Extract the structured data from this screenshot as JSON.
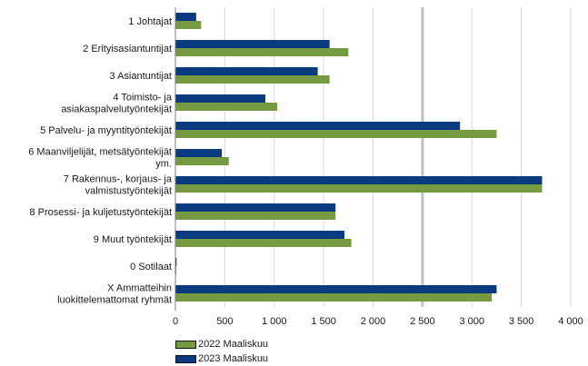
{
  "chart_data": {
    "type": "bar",
    "orientation": "horizontal",
    "categories": [
      "1 Johtajat",
      "2 Erityisasiantuntijat",
      "3 Asiantuntijat",
      "4 Toimisto- ja asiakaspalvelutyöntekijät",
      "5 Palvelu- ja myyntityöntekijät",
      "6 Maanviljelijät, metsätyöntekijät ym.",
      "7 Rakennus-, korjaus- ja valmistustyöntekijät",
      "8 Prosessi- ja kuljetustyöntekijät",
      "9 Muut työntekijät",
      "0 Sotilaat",
      "X Ammatteihin luokittelemattomat ryhmät"
    ],
    "category_lines": [
      [
        "1 Johtajat"
      ],
      [
        "2 Erityisasiantuntijat"
      ],
      [
        "3 Asiantuntijat"
      ],
      [
        "4 Toimisto- ja",
        "asiakaspalvelutyöntekijät"
      ],
      [
        "5 Palvelu- ja myyntityöntekijät"
      ],
      [
        "6 Maanviljelijät, metsätyöntekijät",
        "ym."
      ],
      [
        "7 Rakennus-, korjaus- ja",
        "valmistustyöntekijät"
      ],
      [
        "8 Prosessi- ja kuljetustyöntekijät"
      ],
      [
        "9 Muut työntekijät"
      ],
      [
        "0 Sotilaat"
      ],
      [
        "X Ammatteihin",
        "luokittelemattomat ryhmät"
      ]
    ],
    "series": [
      {
        "name": "2023 Maaliskuu",
        "color": "#0a3a80",
        "values": [
          210,
          1560,
          1440,
          910,
          2880,
          470,
          3710,
          1620,
          1710,
          12,
          3250
        ]
      },
      {
        "name": "2022 Maaliskuu",
        "color": "#769a42",
        "values": [
          260,
          1750,
          1560,
          1030,
          3250,
          540,
          3710,
          1620,
          1780,
          8,
          3200
        ]
      }
    ],
    "legend_order": [
      "2022 Maaliskuu",
      "2023 Maaliskuu"
    ],
    "x_ticks": [
      0,
      500,
      1000,
      1500,
      2000,
      2500,
      3000,
      3500,
      4000
    ],
    "x_tick_labels": [
      "0",
      "500",
      "1 000",
      "1 500",
      "2 000",
      "2 500",
      "3 000",
      "3 500",
      "4 000"
    ],
    "xlim": [
      0,
      4000
    ],
    "grid": "vertical",
    "legend_position": "bottom-left",
    "title": "",
    "xlabel": "",
    "ylabel": ""
  }
}
